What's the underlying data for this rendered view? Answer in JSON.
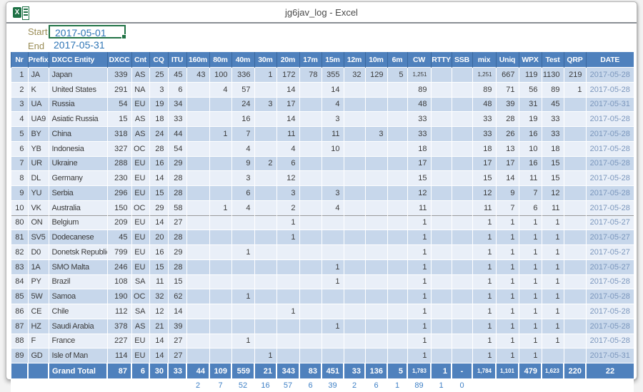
{
  "window": {
    "title": "jg6jav_log - Excel",
    "app_icon": "excel-icon",
    "icon_letter": "X"
  },
  "filters": {
    "start_label": "Start",
    "start_value": "2017-05-01",
    "end_label": "End",
    "end_value": "2017-05-31"
  },
  "colors": {
    "header_blue": "#4f81bd",
    "band_dark": "#c7d7eb",
    "band_light": "#e9eff8",
    "selection_green": "#217346",
    "date_text": "#7b97bd",
    "filter_value_blue": "#2e75b6",
    "filter_label_olive": "#9a8c55",
    "extras_blue": "#3f80c6"
  },
  "table": {
    "columns": [
      "Nr",
      "Prefix",
      "DXCC Entity",
      "DXCC",
      "Cnt",
      "CQ",
      "ITU",
      "160m",
      "80m",
      "40m",
      "30m",
      "20m",
      "17m",
      "15m",
      "12m",
      "10m",
      "6m",
      "CW",
      "RTTY",
      "SSB",
      "mix",
      "Uniq",
      "WPX",
      "Test",
      "QRP",
      "DATE"
    ],
    "rows": [
      {
        "shade": "d",
        "break_above": false,
        "cells": [
          "1",
          "JA",
          "Japan",
          "339",
          "AS",
          "25",
          "45",
          "43",
          "100",
          "336",
          "1",
          "172",
          "78",
          "355",
          "32",
          "129",
          "5",
          "1,251",
          "",
          "",
          "1,251",
          "667",
          "119",
          "1130",
          "219",
          "2017-05-28"
        ]
      },
      {
        "shade": "l",
        "break_above": false,
        "cells": [
          "2",
          "K",
          "United States",
          "291",
          "NA",
          "3",
          "6",
          "",
          "4",
          "57",
          "",
          "14",
          "",
          "14",
          "",
          "",
          "",
          "89",
          "",
          "",
          "89",
          "71",
          "56",
          "89",
          "1",
          "2017-05-28"
        ]
      },
      {
        "shade": "d",
        "break_above": false,
        "cells": [
          "3",
          "UA",
          "Russia",
          "54",
          "EU",
          "19",
          "34",
          "",
          "",
          "24",
          "3",
          "17",
          "",
          "4",
          "",
          "",
          "",
          "48",
          "",
          "",
          "48",
          "39",
          "31",
          "45",
          "",
          "2017-05-31"
        ]
      },
      {
        "shade": "l",
        "break_above": false,
        "cells": [
          "4",
          "UA9",
          "Asiatic Russia",
          "15",
          "AS",
          "18",
          "33",
          "",
          "",
          "16",
          "",
          "14",
          "",
          "3",
          "",
          "",
          "",
          "33",
          "",
          "",
          "33",
          "28",
          "19",
          "33",
          "",
          "2017-05-28"
        ]
      },
      {
        "shade": "d",
        "break_above": false,
        "cells": [
          "5",
          "BY",
          "China",
          "318",
          "AS",
          "24",
          "44",
          "",
          "1",
          "7",
          "",
          "11",
          "",
          "11",
          "",
          "3",
          "",
          "33",
          "",
          "",
          "33",
          "26",
          "16",
          "33",
          "",
          "2017-05-28"
        ]
      },
      {
        "shade": "l",
        "break_above": false,
        "cells": [
          "6",
          "YB",
          "Indonesia",
          "327",
          "OC",
          "28",
          "54",
          "",
          "",
          "4",
          "",
          "4",
          "",
          "10",
          "",
          "",
          "",
          "18",
          "",
          "",
          "18",
          "13",
          "10",
          "18",
          "",
          "2017-05-28"
        ]
      },
      {
        "shade": "d",
        "break_above": false,
        "cells": [
          "7",
          "UR",
          "Ukraine",
          "288",
          "EU",
          "16",
          "29",
          "",
          "",
          "9",
          "2",
          "6",
          "",
          "",
          "",
          "",
          "",
          "17",
          "",
          "",
          "17",
          "17",
          "16",
          "15",
          "",
          "2017-05-28"
        ]
      },
      {
        "shade": "l",
        "break_above": false,
        "cells": [
          "8",
          "DL",
          "Germany",
          "230",
          "EU",
          "14",
          "28",
          "",
          "",
          "3",
          "",
          "12",
          "",
          "",
          "",
          "",
          "",
          "15",
          "",
          "",
          "15",
          "14",
          "11",
          "15",
          "",
          "2017-05-28"
        ]
      },
      {
        "shade": "d",
        "break_above": false,
        "cells": [
          "9",
          "YU",
          "Serbia",
          "296",
          "EU",
          "15",
          "28",
          "",
          "",
          "6",
          "",
          "3",
          "",
          "3",
          "",
          "",
          "",
          "12",
          "",
          "",
          "12",
          "9",
          "7",
          "12",
          "",
          "2017-05-28"
        ]
      },
      {
        "shade": "l",
        "break_above": false,
        "cells": [
          "10",
          "VK",
          "Australia",
          "150",
          "OC",
          "29",
          "58",
          "",
          "1",
          "4",
          "",
          "2",
          "",
          "4",
          "",
          "",
          "",
          "11",
          "",
          "",
          "11",
          "7",
          "6",
          "11",
          "",
          "2017-05-28"
        ]
      },
      {
        "shade": "l",
        "break_above": true,
        "cells": [
          "80",
          "ON",
          "Belgium",
          "209",
          "EU",
          "14",
          "27",
          "",
          "",
          "",
          "",
          "1",
          "",
          "",
          "",
          "",
          "",
          "1",
          "",
          "",
          "1",
          "1",
          "1",
          "1",
          "",
          "2017-05-27"
        ]
      },
      {
        "shade": "d",
        "break_above": false,
        "cells": [
          "81",
          "SV5",
          "Dodecanese",
          "45",
          "EU",
          "20",
          "28",
          "",
          "",
          "",
          "",
          "1",
          "",
          "",
          "",
          "",
          "",
          "1",
          "",
          "",
          "1",
          "1",
          "1",
          "1",
          "",
          "2017-05-27"
        ]
      },
      {
        "shade": "l",
        "break_above": false,
        "cells": [
          "82",
          "D0",
          "Donetsk Republic",
          "799",
          "EU",
          "16",
          "29",
          "",
          "",
          "1",
          "",
          "",
          "",
          "",
          "",
          "",
          "",
          "1",
          "",
          "",
          "1",
          "1",
          "1",
          "1",
          "",
          "2017-05-27"
        ]
      },
      {
        "shade": "d",
        "break_above": false,
        "cells": [
          "83",
          "1A",
          "SMO Malta",
          "246",
          "EU",
          "15",
          "28",
          "",
          "",
          "",
          "",
          "",
          "",
          "1",
          "",
          "",
          "",
          "1",
          "",
          "",
          "1",
          "1",
          "1",
          "1",
          "",
          "2017-05-27"
        ]
      },
      {
        "shade": "l",
        "break_above": false,
        "cells": [
          "84",
          "PY",
          "Brazil",
          "108",
          "SA",
          "11",
          "15",
          "",
          "",
          "",
          "",
          "",
          "",
          "1",
          "",
          "",
          "",
          "1",
          "",
          "",
          "1",
          "1",
          "1",
          "1",
          "",
          "2017-05-28"
        ]
      },
      {
        "shade": "d",
        "break_above": false,
        "cells": [
          "85",
          "5W",
          "Samoa",
          "190",
          "OC",
          "32",
          "62",
          "",
          "",
          "1",
          "",
          "",
          "",
          "",
          "",
          "",
          "",
          "1",
          "",
          "",
          "1",
          "1",
          "1",
          "1",
          "",
          "2017-05-28"
        ]
      },
      {
        "shade": "l",
        "break_above": false,
        "cells": [
          "86",
          "CE",
          "Chile",
          "112",
          "SA",
          "12",
          "14",
          "",
          "",
          "",
          "",
          "1",
          "",
          "",
          "",
          "",
          "",
          "1",
          "",
          "",
          "1",
          "1",
          "1",
          "1",
          "",
          "2017-05-28"
        ]
      },
      {
        "shade": "d",
        "break_above": false,
        "cells": [
          "87",
          "HZ",
          "Saudi Arabia",
          "378",
          "AS",
          "21",
          "39",
          "",
          "",
          "",
          "",
          "",
          "",
          "1",
          "",
          "",
          "",
          "1",
          "",
          "",
          "1",
          "1",
          "1",
          "1",
          "",
          "2017-05-28"
        ]
      },
      {
        "shade": "l",
        "break_above": false,
        "cells": [
          "88",
          "F",
          "France",
          "227",
          "EU",
          "14",
          "27",
          "",
          "",
          "1",
          "",
          "",
          "",
          "",
          "",
          "",
          "",
          "1",
          "",
          "",
          "1",
          "1",
          "1",
          "1",
          "",
          "2017-05-28"
        ]
      },
      {
        "shade": "d",
        "break_above": false,
        "cells": [
          "89",
          "GD",
          "Isle of Man",
          "114",
          "EU",
          "14",
          "27",
          "",
          "",
          "",
          "1",
          "",
          "",
          "",
          "",
          "",
          "",
          "1",
          "",
          "",
          "1",
          "1",
          "1",
          "",
          "",
          "2017-05-31"
        ]
      }
    ],
    "grand_total": [
      "",
      "",
      "Grand Total",
      "87",
      "6",
      "30",
      "33",
      "44",
      "109",
      "559",
      "21",
      "343",
      "83",
      "451",
      "33",
      "136",
      "5",
      "1,783",
      "1",
      "-",
      "1,784",
      "1,101",
      "479",
      "1,623",
      "220",
      "22"
    ],
    "extras": [
      "",
      "",
      "",
      "",
      "",
      "",
      "",
      "2",
      "7",
      "52",
      "16",
      "57",
      "6",
      "39",
      "2",
      "6",
      "1",
      "89",
      "1",
      "0",
      "",
      "",
      "",
      "",
      "",
      ""
    ]
  }
}
